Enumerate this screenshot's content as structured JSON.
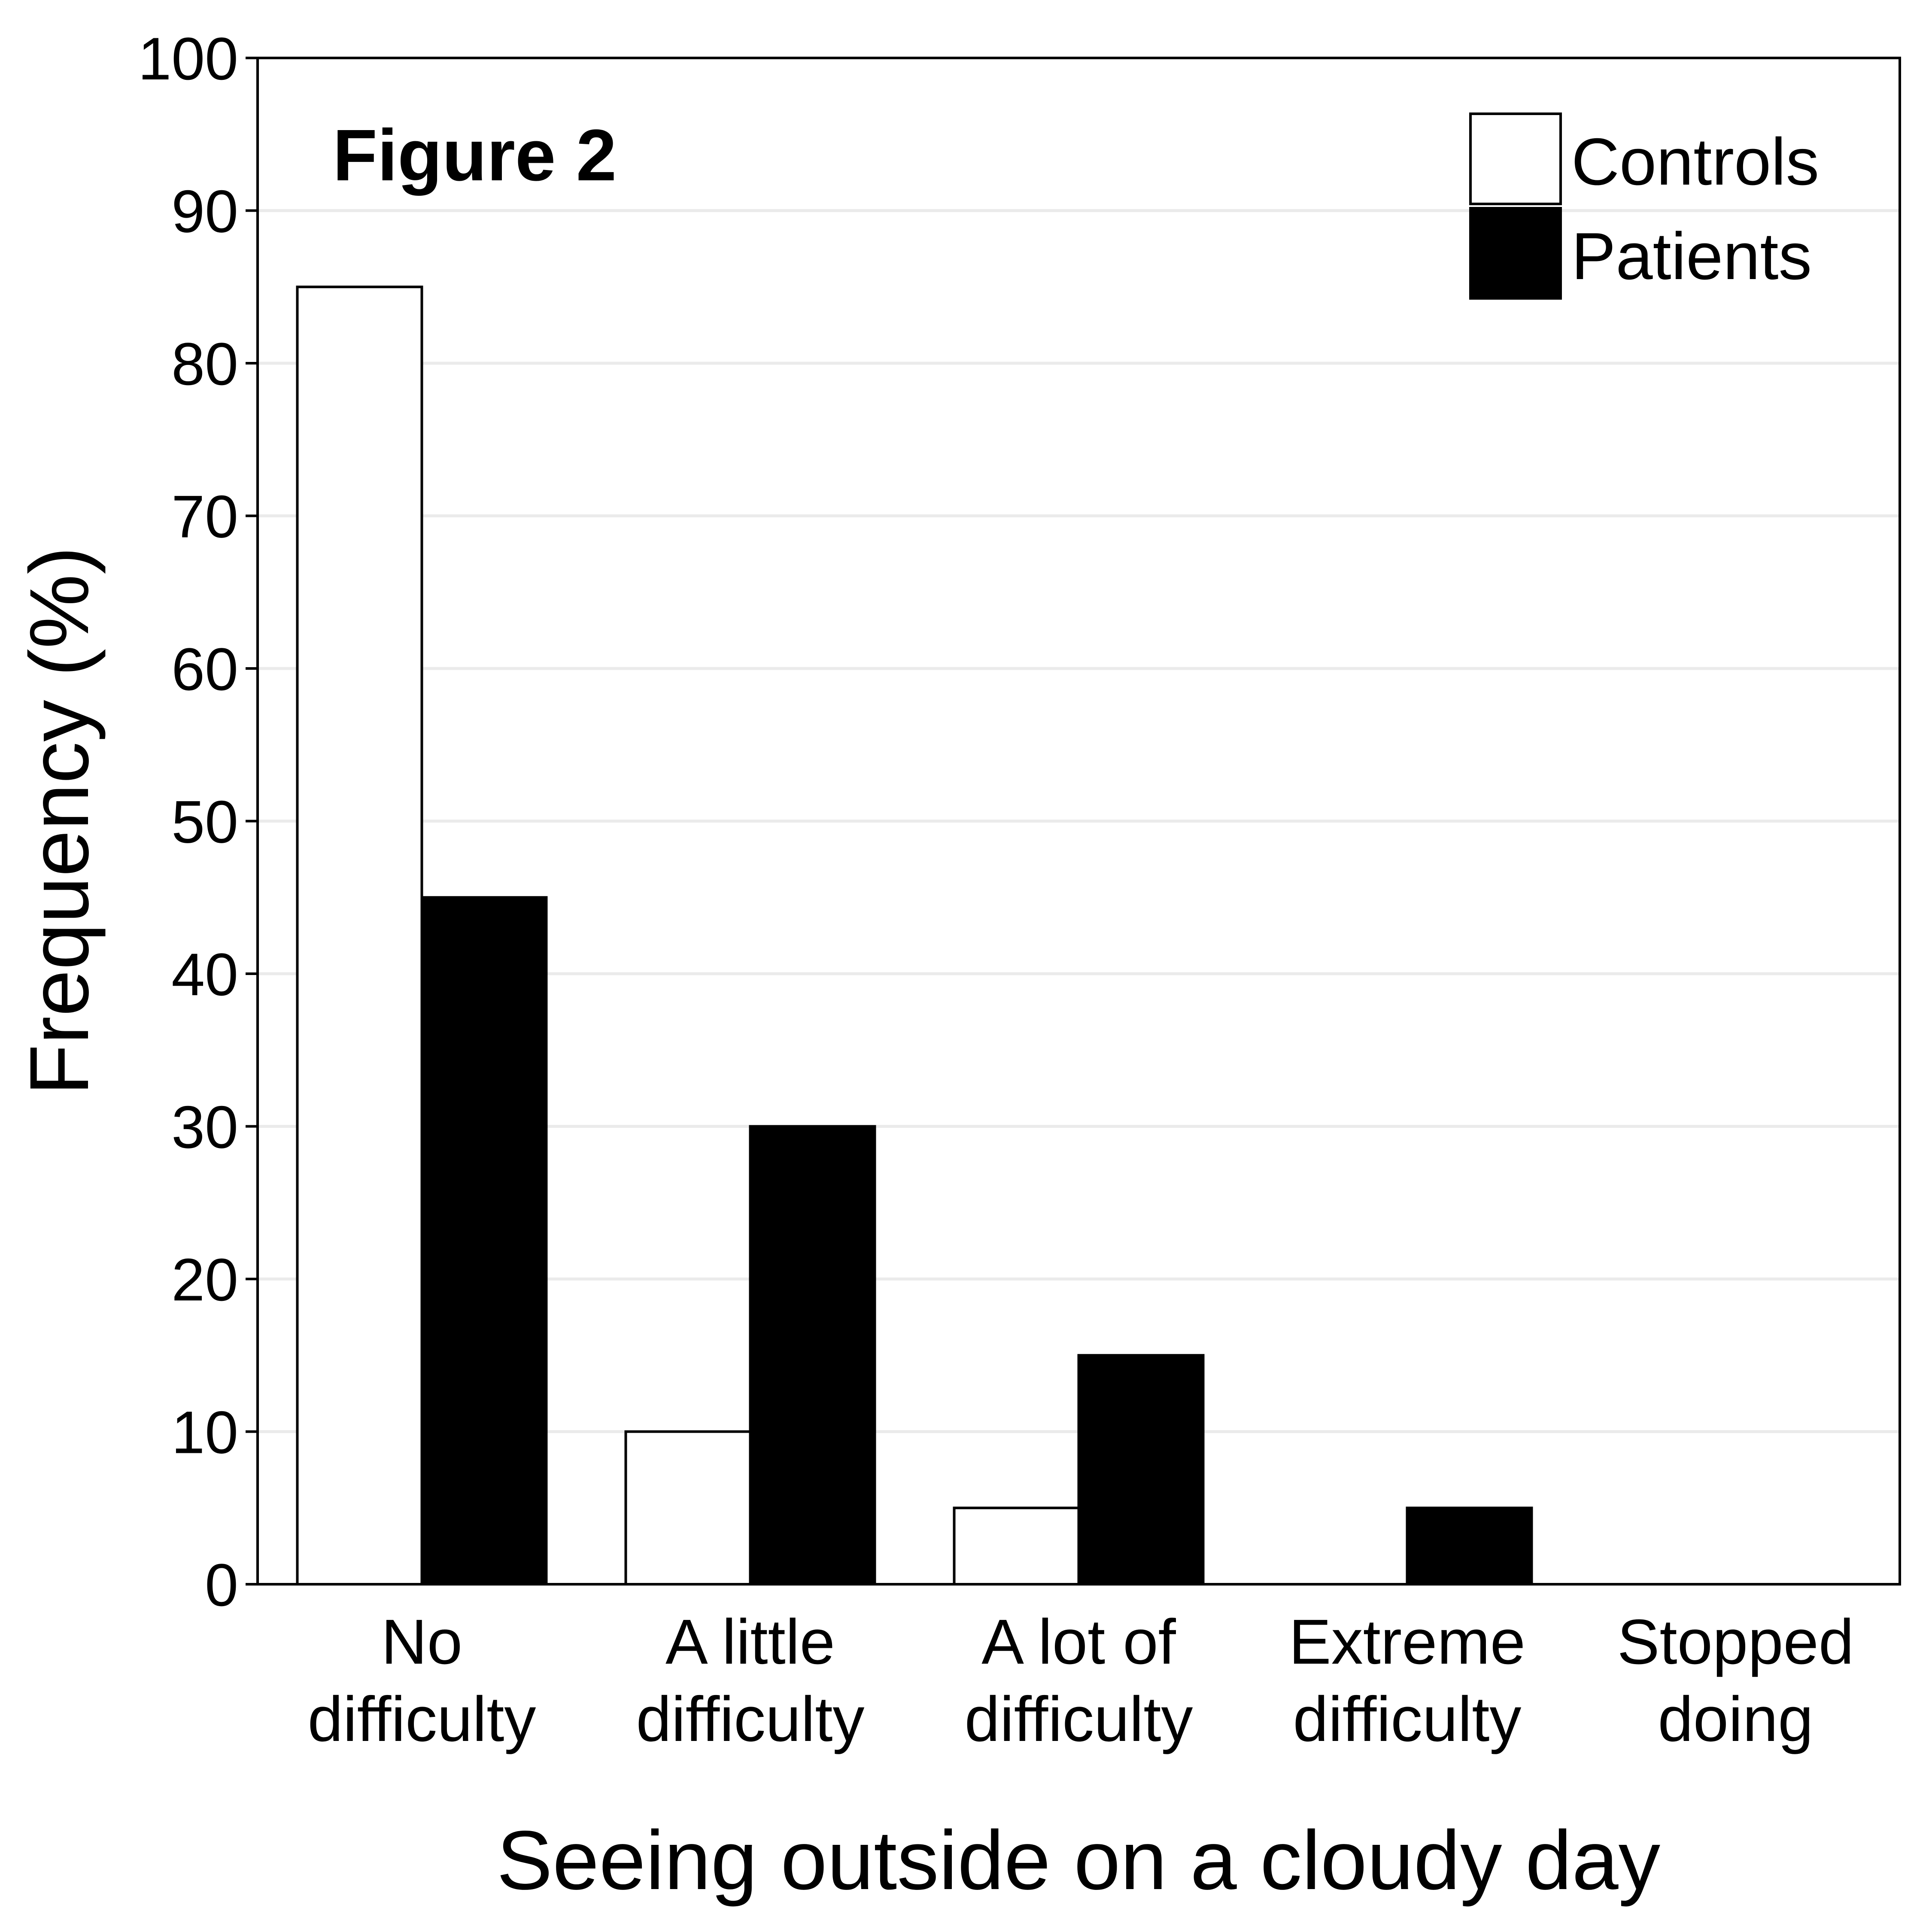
{
  "chart_data": {
    "type": "bar",
    "title": "Figure 2",
    "xlabel": "Seeing outside on a cloudy day",
    "ylabel": "Frequency (%)",
    "ylim": [
      0,
      100
    ],
    "yticks": [
      "0",
      "10",
      "20",
      "30",
      "40",
      "50",
      "60",
      "70",
      "80",
      "90",
      "100"
    ],
    "grid": "horizontal",
    "legend_position": "top-right",
    "categories": [
      [
        "No",
        "difficulty"
      ],
      [
        "A little",
        "difficulty"
      ],
      [
        "A lot of",
        "difficulty"
      ],
      [
        "Extreme",
        "difficulty"
      ],
      [
        "Stopped",
        "doing"
      ]
    ],
    "series": [
      {
        "name": "Controls",
        "color": "#ffffff",
        "values": [
          85,
          10,
          5,
          0,
          0
        ]
      },
      {
        "name": "Patients",
        "color": "#000000",
        "values": [
          45,
          30,
          15,
          5,
          0
        ]
      }
    ],
    "gridline_color": "#ebebeb"
  }
}
